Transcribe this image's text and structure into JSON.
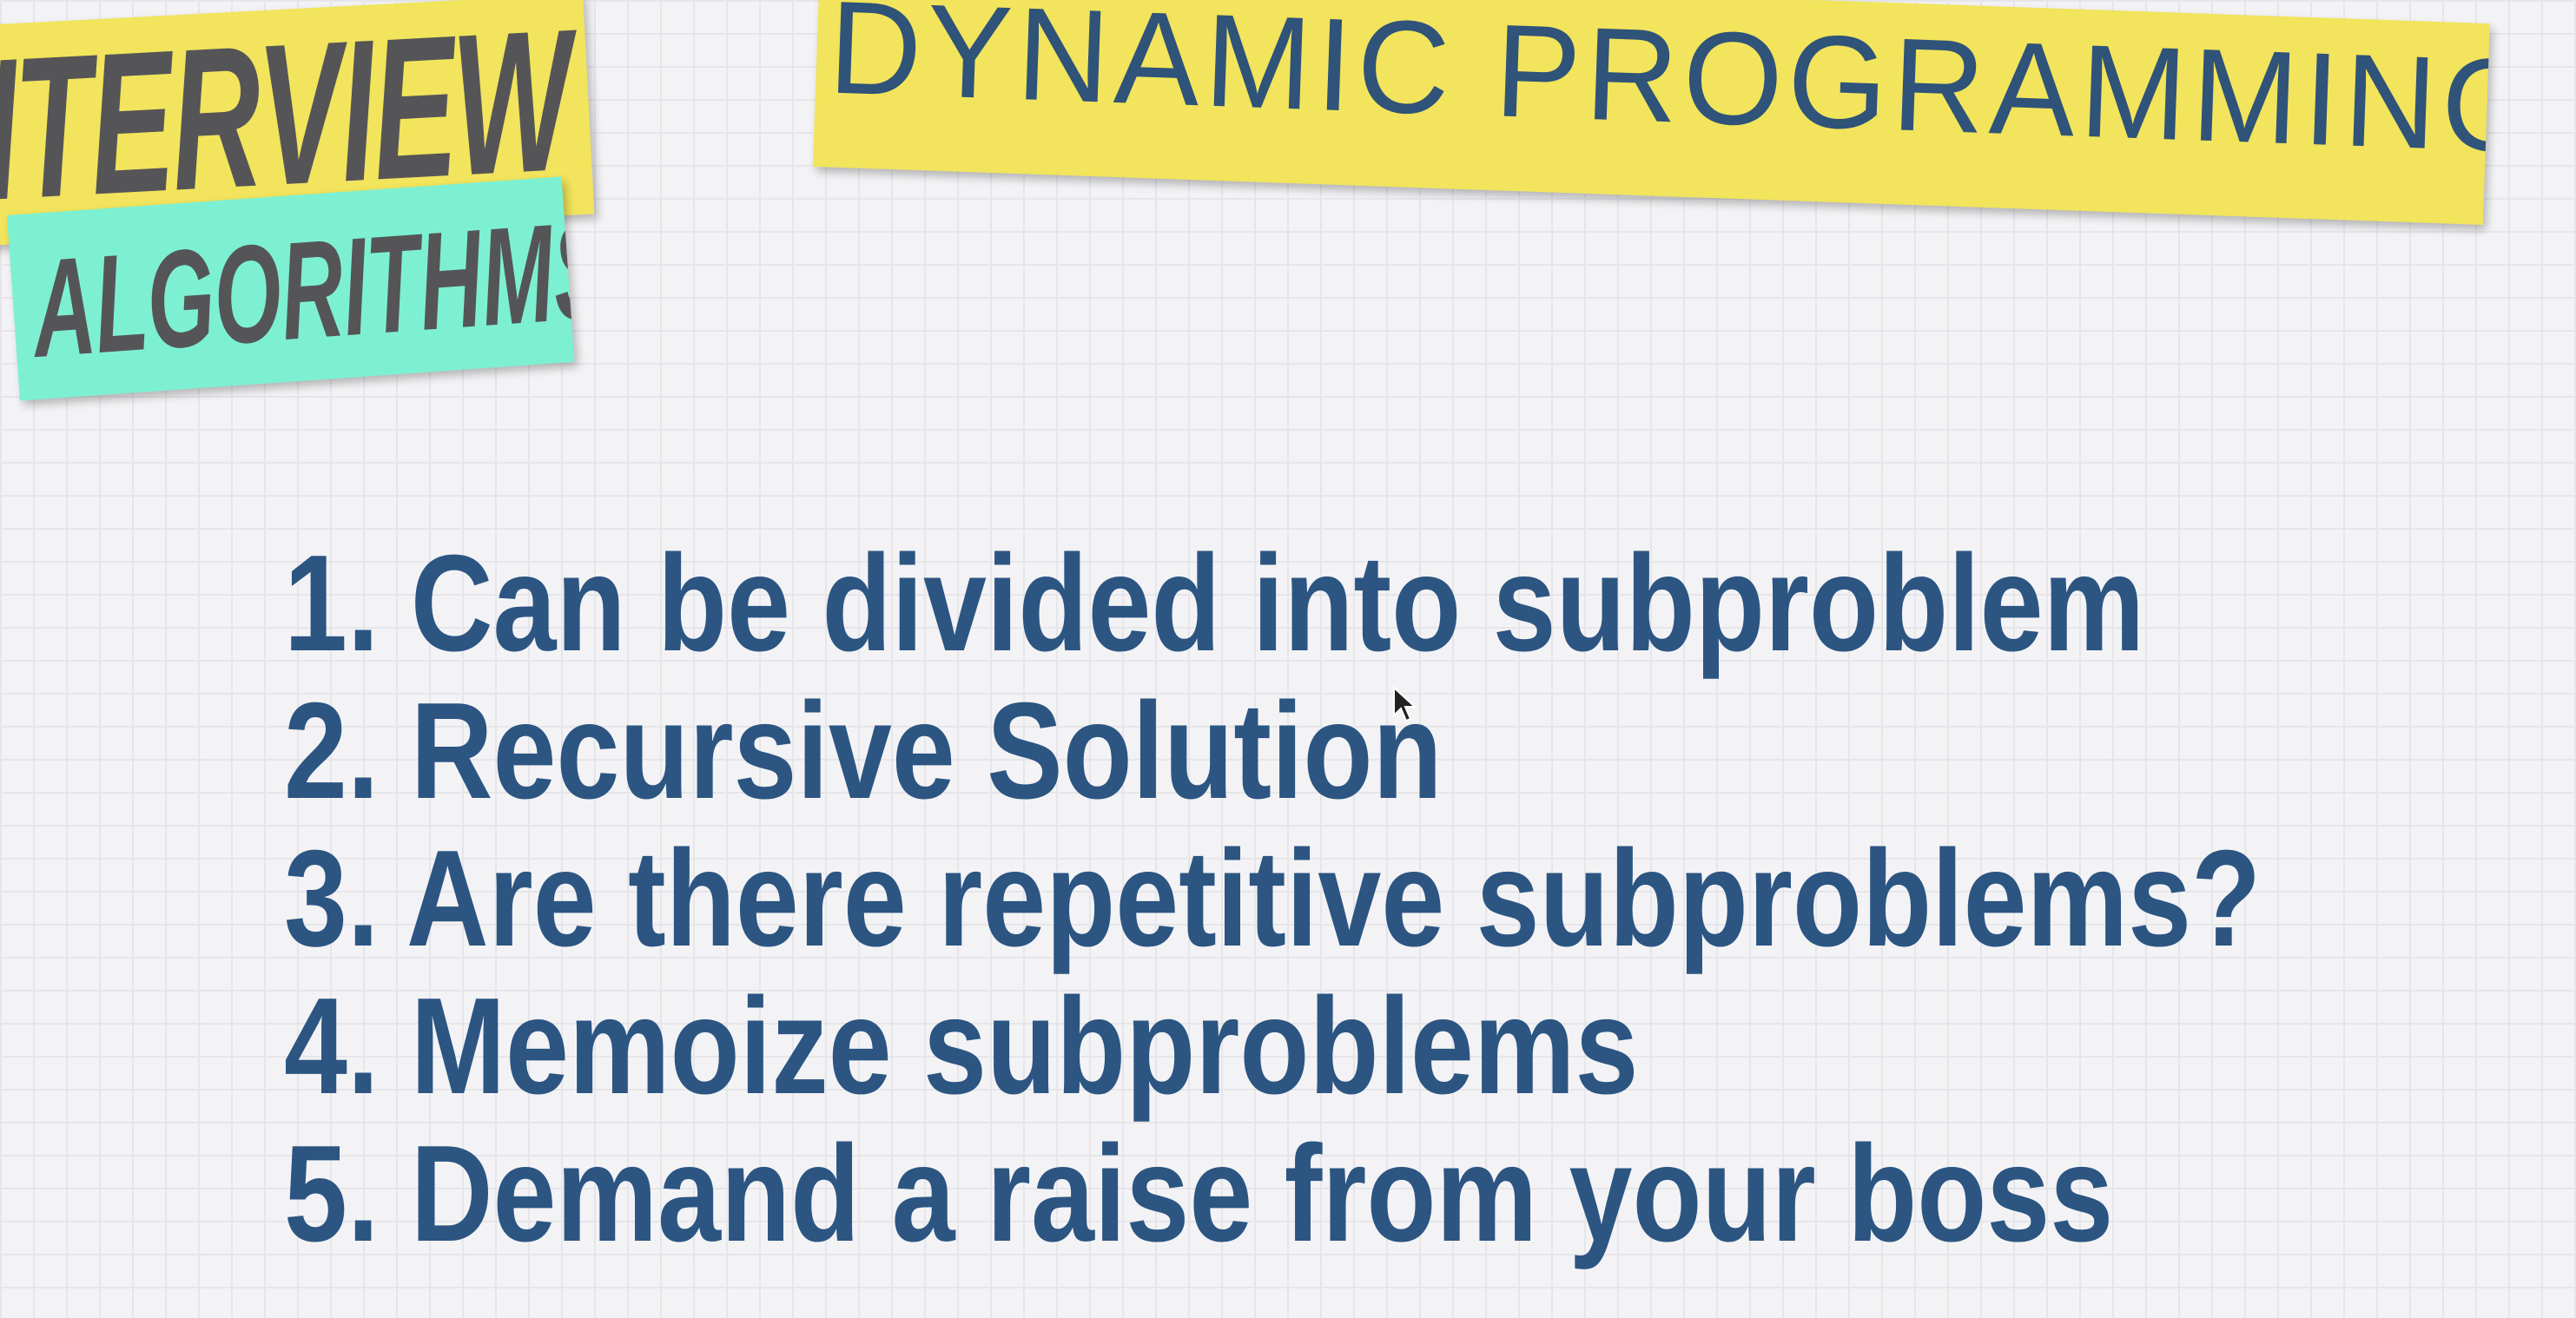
{
  "logo": {
    "line1": "INTERVIEW",
    "line2": "ALGORITHMS"
  },
  "title": "DYNAMIC PROGRAMMING",
  "items": [
    "1. Can be divided into subproblem",
    "2. Recursive Solution",
    "3. Are there repetitive subproblems?",
    "4. Memoize subproblems",
    "5. Demand a raise from your boss"
  ]
}
